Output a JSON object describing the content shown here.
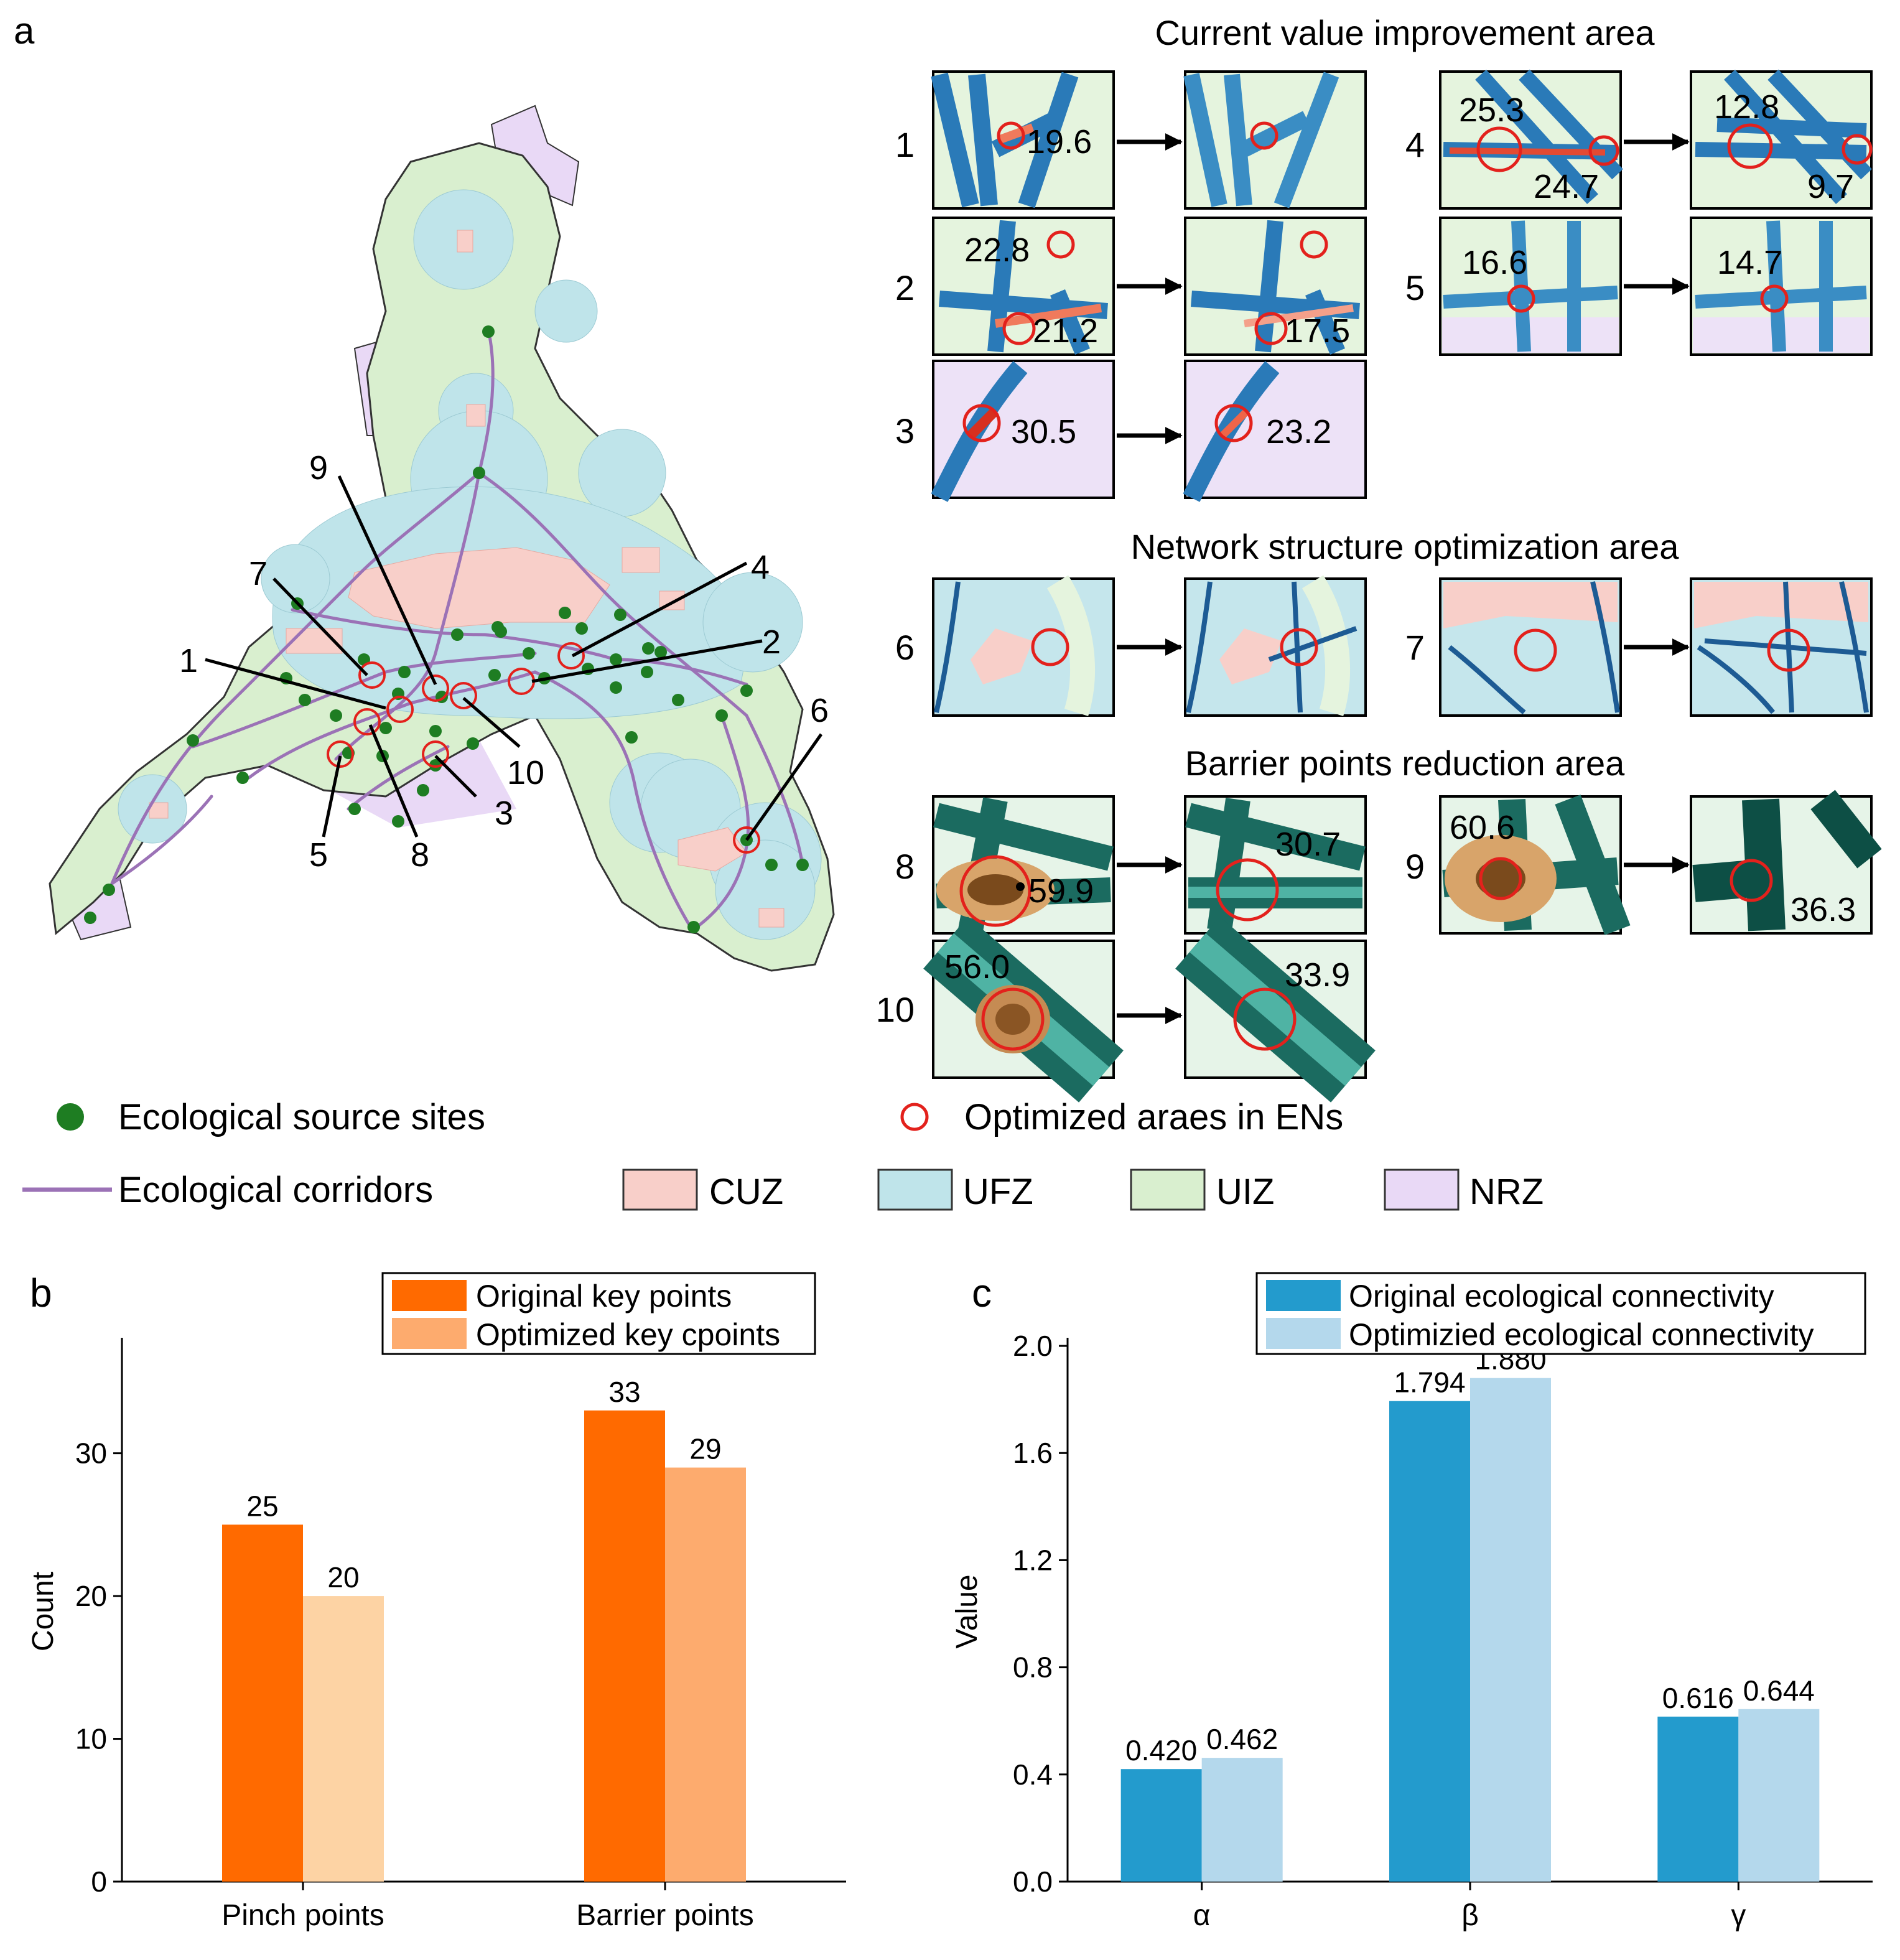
{
  "panel_labels": {
    "a": "a",
    "b": "b",
    "c": "c"
  },
  "map": {
    "site_labels": [
      "1",
      "2",
      "3",
      "4",
      "5",
      "6",
      "7",
      "8",
      "9",
      "10"
    ],
    "colors": {
      "CUZ": "#f8cfc9",
      "UFZ": "#bfe4ea",
      "UIZ": "#d9efcf",
      "NRZ": "#e9d9f6",
      "corridor": "#9b72b6",
      "source": "#1e7d22",
      "optimized": "#e3211c"
    }
  },
  "insets": {
    "section_titles": {
      "current": "Current value improvement area",
      "network": "Network structure optimization area",
      "barrier": "Barrier points reduction area"
    },
    "rows": [
      {
        "id": "1",
        "before": [
          "19.6"
        ],
        "after": []
      },
      {
        "id": "2",
        "before": [
          "22.8",
          "21.2"
        ],
        "after": [
          "17.5"
        ]
      },
      {
        "id": "3",
        "before": [
          "30.5"
        ],
        "after": [
          "23.2"
        ]
      },
      {
        "id": "4",
        "before": [
          "25.3",
          "24.7"
        ],
        "after": [
          "12.8",
          "9.7"
        ]
      },
      {
        "id": "5",
        "before": [
          "16.6"
        ],
        "after": [
          "14.7"
        ]
      },
      {
        "id": "6",
        "before": [],
        "after": []
      },
      {
        "id": "7",
        "before": [],
        "after": []
      },
      {
        "id": "8",
        "before": [
          "59.9"
        ],
        "after": [
          "30.7"
        ]
      },
      {
        "id": "9",
        "before": [
          "60.6"
        ],
        "after": [
          "36.3"
        ]
      },
      {
        "id": "10",
        "before": [
          "56.0"
        ],
        "after": [
          "33.9"
        ]
      }
    ]
  },
  "legend": {
    "sources": "Ecological source sites",
    "optimized": "Optimized araes in ENs",
    "corridors": "Ecological corridors",
    "zones": [
      "CUZ",
      "UFZ",
      "UIZ",
      "NRZ"
    ]
  },
  "chart_data": [
    {
      "type": "bar",
      "ylabel": "Count",
      "ylim": [
        0,
        37
      ],
      "yticks": [
        0,
        10,
        20,
        30
      ],
      "categories": [
        "Pinch points",
        "Barrier points"
      ],
      "series": [
        {
          "name": "Original key points",
          "values": [
            25,
            33
          ]
        },
        {
          "name": "Optimized key cpoints",
          "values": [
            20,
            29
          ]
        }
      ],
      "value_labels": [
        [
          "25",
          "33"
        ],
        [
          "20",
          "29"
        ]
      ],
      "bar_colors": [
        [
          "#ff6a00",
          "#ff6a00"
        ],
        [
          "#fdd3a4",
          "#fdab6e"
        ]
      ],
      "legend_colors": [
        "#ff6a00",
        "#fdab6e"
      ],
      "legend_position": "top-right"
    },
    {
      "type": "bar",
      "ylabel": "Value",
      "ylim": [
        0,
        2.1
      ],
      "yticks": [
        "0.0",
        "0.4",
        "0.8",
        "1.2",
        "1.6",
        "2.0"
      ],
      "categories": [
        "α",
        "β",
        "γ"
      ],
      "series": [
        {
          "name": "Original ecological connectivity",
          "values": [
            0.42,
            1.794,
            0.616
          ]
        },
        {
          "name": "Optimizied ecological connectivity",
          "values": [
            0.462,
            1.88,
            0.644
          ]
        }
      ],
      "value_labels": [
        [
          "0.420",
          "1.794",
          "0.616"
        ],
        [
          "0.462",
          "1.880",
          "0.644"
        ]
      ],
      "colors": [
        "#239bcd",
        "#b4d8ec"
      ],
      "legend_position": "top-right"
    }
  ]
}
